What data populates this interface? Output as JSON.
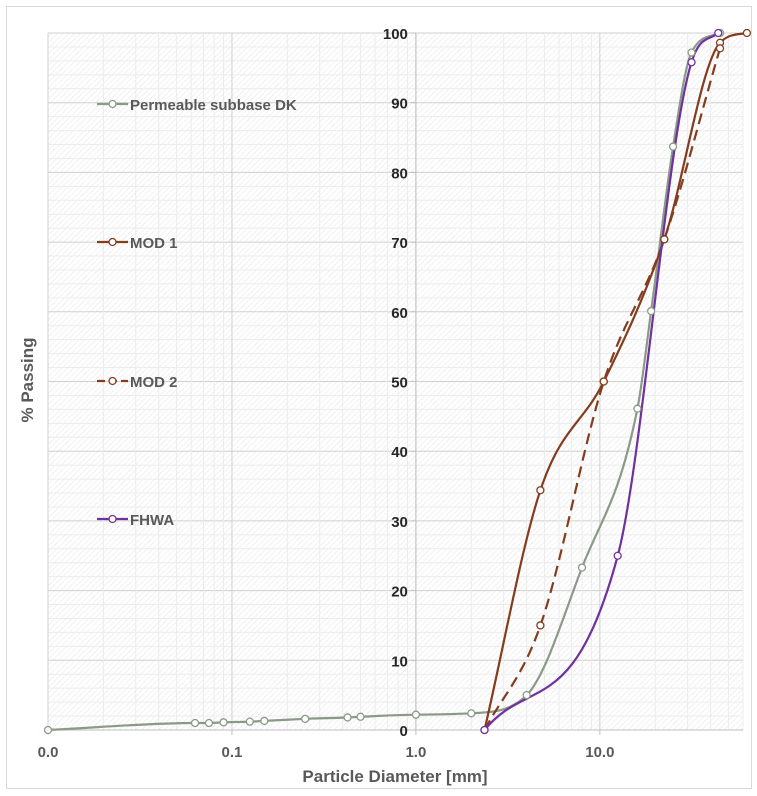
{
  "chart_data": {
    "type": "line",
    "xlabel": "Particle Diameter [mm]",
    "ylabel": "% Passing",
    "x_scale": "log",
    "xlim": [
      0.01,
      60
    ],
    "ylim": [
      0,
      100
    ],
    "x_tick_values": [
      0.01,
      0.1,
      1,
      10
    ],
    "x_tick_labels": [
      "0.0",
      "0.1",
      "1.0",
      "10.0"
    ],
    "y_ticks": [
      0,
      10,
      20,
      30,
      40,
      50,
      60,
      70,
      80,
      90,
      100
    ],
    "grid": true,
    "legend_position": "left",
    "series": [
      {
        "name": "Permeable subbase DK",
        "color": "#8a9a86",
        "dash": "solid",
        "x": [
          0.01,
          0.063,
          0.075,
          0.09,
          0.125,
          0.15,
          0.25,
          0.425,
          0.5,
          1.0,
          2.0,
          4.0,
          8.0,
          16.0,
          19.0,
          25.0,
          31.5,
          45.0
        ],
        "y": [
          0,
          1,
          1,
          1.1,
          1.2,
          1.3,
          1.6,
          1.8,
          1.9,
          2.2,
          2.4,
          5,
          23.3,
          46.1,
          60.1,
          83.7,
          97.2,
          100
        ]
      },
      {
        "name": "MOD 1",
        "color": "#843c1e",
        "dash": "solid",
        "x": [
          2.36,
          4.75,
          10.5,
          22.4,
          45.0,
          63.0
        ],
        "y": [
          0,
          34.4,
          50,
          70.4,
          98.6,
          100
        ]
      },
      {
        "name": "MOD 2",
        "color": "#843c1e",
        "dash": "dashed",
        "x": [
          2.36,
          4.75,
          10.5,
          22.4,
          45.0
        ],
        "y": [
          0,
          15,
          50,
          70.4,
          97.8
        ]
      },
      {
        "name": "FHWA",
        "color": "#7030a0",
        "dash": "solid",
        "x": [
          2.36,
          12.5,
          31.5,
          44.0
        ],
        "y": [
          0,
          25,
          95.8,
          100
        ]
      }
    ]
  }
}
